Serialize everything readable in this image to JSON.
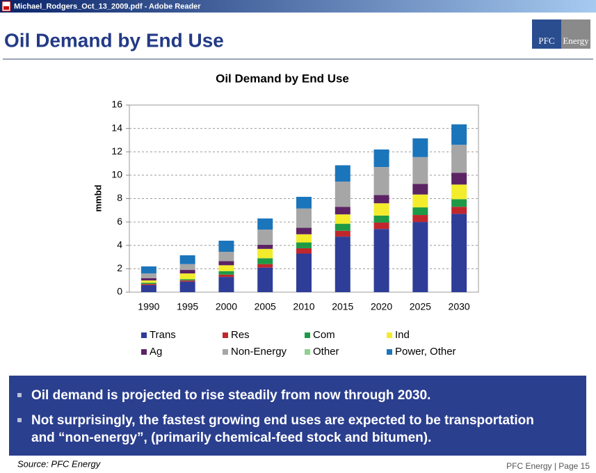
{
  "window": {
    "title": "Michael_Rodgers_Oct_13_2009.pdf - Adobe Reader"
  },
  "slide": {
    "title": "Oil Demand by End Use",
    "logo": [
      "PFC",
      "Energy"
    ],
    "bullets": [
      "Oil demand is projected to rise steadily from now through 2030.",
      [
        "Not surprisingly, the fastest growing end uses are expected to be transportation",
        "and “non-energy”, (primarily chemical-feed stock and bitumen)."
      ]
    ],
    "source": "Source: PFC Energy",
    "footer": "PFC Energy |  Page 15"
  },
  "chart_data": {
    "type": "stacked_bar",
    "title": "Oil Demand by End Use",
    "y_label": "mmbd",
    "categories": [
      "1990",
      "1995",
      "2000",
      "2005",
      "2010",
      "2015",
      "2020",
      "2025",
      "2030"
    ],
    "series": [
      {
        "name": "Trans",
        "color": "#2e3d98",
        "values": [
          0.6,
          0.9,
          1.3,
          2.1,
          3.3,
          4.75,
          5.4,
          6.0,
          6.7
        ]
      },
      {
        "name": "Res",
        "color": "#c0272d",
        "values": [
          0.1,
          0.1,
          0.2,
          0.3,
          0.45,
          0.5,
          0.55,
          0.6,
          0.6
        ]
      },
      {
        "name": "Com",
        "color": "#1e9a46",
        "values": [
          0.1,
          0.1,
          0.3,
          0.5,
          0.5,
          0.6,
          0.6,
          0.65,
          0.65
        ]
      },
      {
        "name": "Ind",
        "color": "#f2ec2c",
        "values": [
          0.2,
          0.5,
          0.5,
          0.8,
          0.7,
          0.8,
          1.05,
          1.1,
          1.25
        ]
      },
      {
        "name": "Ag",
        "color": "#5c2364",
        "values": [
          0.2,
          0.3,
          0.35,
          0.35,
          0.55,
          0.65,
          0.7,
          0.9,
          1.0
        ]
      },
      {
        "name": "Non-Energy",
        "color": "#a6a6a6",
        "values": [
          0.4,
          0.5,
          0.8,
          1.3,
          1.65,
          2.15,
          2.4,
          2.3,
          2.4
        ]
      },
      {
        "name": "Other",
        "color": "#8fd18f",
        "values": [
          0,
          0,
          0,
          0,
          0,
          0,
          0,
          0,
          0
        ]
      },
      {
        "name": "Power, Other",
        "color": "#1b75bb",
        "values": [
          0.6,
          0.75,
          0.95,
          0.95,
          1.0,
          1.4,
          1.5,
          1.6,
          1.75
        ]
      }
    ],
    "ylim": [
      0,
      16
    ],
    "yticks": [
      0,
      2,
      4,
      6,
      8,
      10,
      12,
      14,
      16
    ],
    "grid": true
  }
}
